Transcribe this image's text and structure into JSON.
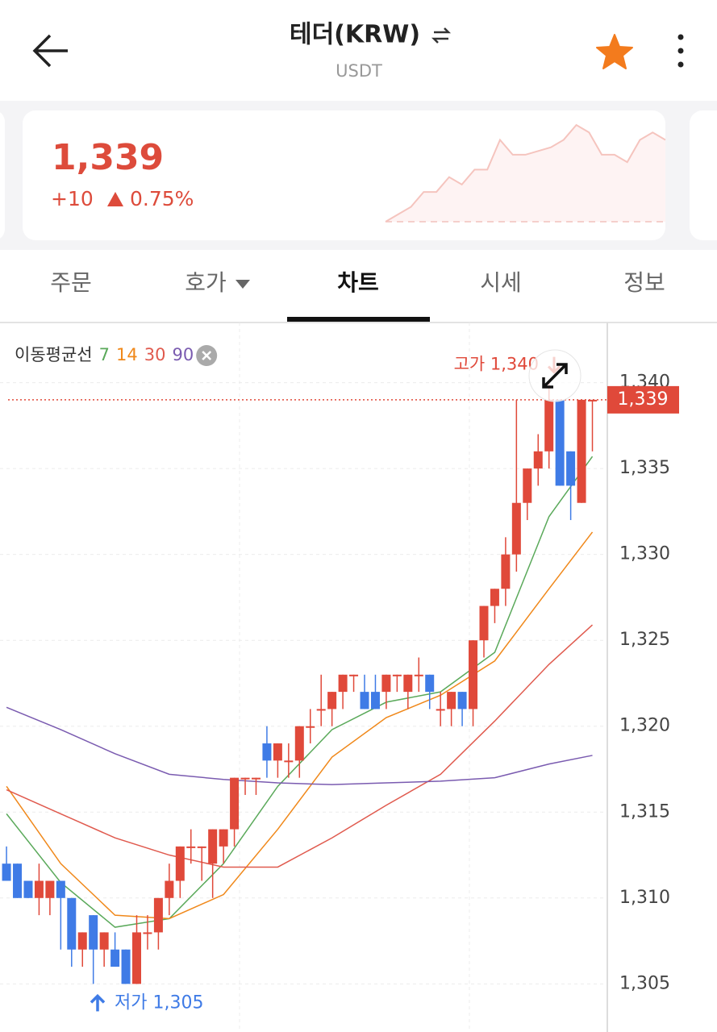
{
  "header": {
    "title": "테더(KRW)",
    "subtitle": "USDT"
  },
  "price_card": {
    "price": "1,339",
    "change": "+10",
    "change_rate": "0.75%",
    "sparkline": {
      "baseline": 1329,
      "values": [
        1329,
        1330,
        1331,
        1333,
        1333,
        1335,
        1334,
        1336,
        1336,
        1340,
        1338,
        1338,
        1338.5,
        1339,
        1340,
        1342,
        1341,
        1338,
        1338,
        1337,
        1340,
        1341,
        1340
      ]
    }
  },
  "tabs": [
    "주문",
    "호가",
    "차트",
    "시세",
    "정보"
  ],
  "active_tab": 2,
  "chart_data": {
    "type": "candlestick",
    "legend_title": "이동평균선",
    "up_color": "#e0493a",
    "down_color": "#3f7be6",
    "xlim": [
      -0.6,
      55.3
    ],
    "ylim": [
      1302.2,
      1343.5
    ],
    "yticks": [
      {
        "value": 1305,
        "label": "1,305"
      },
      {
        "value": 1310,
        "label": "1,310"
      },
      {
        "value": 1315,
        "label": "1,315"
      },
      {
        "value": 1320,
        "label": "1,320"
      },
      {
        "value": 1325,
        "label": "1,325"
      },
      {
        "value": 1330,
        "label": "1,330"
      },
      {
        "value": 1335,
        "label": "1,335"
      },
      {
        "value": 1340,
        "label": "1,340"
      }
    ],
    "grid": true,
    "open": [
      1312,
      1312,
      1311,
      1310,
      1310,
      1311,
      1310,
      1307,
      1309,
      1307,
      1307,
      1307,
      1305,
      1308,
      1308,
      1310,
      1311,
      1313,
      1313,
      1312,
      1313,
      1314,
      1317,
      1317,
      1319,
      1318,
      1318,
      1318,
      1320,
      1321,
      1321,
      1322,
      1323,
      1322,
      1322,
      1322,
      1323,
      1322,
      1323,
      1323,
      1321,
      1321,
      1322,
      1321,
      1325,
      1327,
      1328,
      1330,
      1333,
      1335,
      1336,
      1339,
      1336,
      1333,
      1339
    ],
    "high": [
      1313,
      1312,
      1311,
      1312,
      1311,
      1311,
      1310,
      1308,
      1309,
      1308,
      1308,
      1307,
      1309,
      1309,
      1310,
      1312,
      1313,
      1314,
      1313,
      1314,
      1314,
      1317,
      1317,
      1317,
      1320,
      1319,
      1319,
      1320,
      1321,
      1323,
      1322,
      1323,
      1323,
      1323,
      1323,
      1323,
      1323,
      1323,
      1324,
      1323,
      1322,
      1322,
      1322,
      1325,
      1327,
      1328,
      1331,
      1339,
      1335,
      1337,
      1340,
      1339,
      1336,
      1339,
      1339
    ],
    "low": [
      1311,
      1310,
      1310,
      1309,
      1309,
      1307,
      1306,
      1306,
      1305,
      1306,
      1306,
      1305,
      1305,
      1307,
      1307,
      1309,
      1310,
      1312,
      1311,
      1310,
      1312,
      1313,
      1316,
      1316,
      1317,
      1317,
      1317,
      1317,
      1319,
      1320,
      1320,
      1321,
      1322,
      1321,
      1321,
      1321,
      1322,
      1321,
      1322,
      1321,
      1320,
      1320,
      1320,
      1320,
      1324,
      1326,
      1327,
      1329,
      1332,
      1334,
      1335,
      1334,
      1332,
      1333,
      1336
    ],
    "close": [
      1311,
      1310,
      1310,
      1311,
      1311,
      1310,
      1307,
      1308,
      1307,
      1308,
      1306,
      1305,
      1308,
      1308,
      1310,
      1311,
      1313,
      1313,
      1313,
      1314,
      1314,
      1317,
      1317,
      1317,
      1318,
      1319,
      1318,
      1320,
      1320,
      1321,
      1322,
      1323,
      1323,
      1321,
      1321,
      1323,
      1323,
      1323,
      1323,
      1322,
      1321,
      1322,
      1321,
      1325,
      1327,
      1328,
      1330,
      1333,
      1335,
      1336,
      1339,
      1334,
      1334,
      1339,
      1339
    ],
    "moving_averages": [
      {
        "name": "7",
        "color": "#5aa95a",
        "x": [
          0,
          5,
          10,
          15,
          20,
          25,
          30,
          35,
          40,
          45,
          50,
          54
        ],
        "values": [
          1314.9,
          1310.9,
          1308.3,
          1308.8,
          1312,
          1316.5,
          1319.8,
          1321.4,
          1322,
          1324.3,
          1332.2,
          1335.7
        ]
      },
      {
        "name": "14",
        "color": "#f0881a",
        "x": [
          0,
          5,
          10,
          15,
          20,
          25,
          30,
          35,
          40,
          45,
          50,
          54
        ],
        "values": [
          1316.5,
          1312,
          1309,
          1308.8,
          1310.2,
          1314,
          1318.2,
          1320.5,
          1321.8,
          1323.8,
          1328,
          1331.3
        ]
      },
      {
        "name": "30",
        "color": "#e05a4e",
        "x": [
          0,
          5,
          10,
          15,
          20,
          25,
          30,
          35,
          40,
          45,
          50,
          54
        ],
        "values": [
          1316.3,
          1314.9,
          1313.5,
          1312.5,
          1311.8,
          1311.8,
          1313.5,
          1315.4,
          1317.2,
          1320.3,
          1323.6,
          1325.9
        ]
      },
      {
        "name": "90",
        "color": "#7a5bb0",
        "x": [
          0,
          5,
          10,
          15,
          20,
          25,
          30,
          35,
          40,
          45,
          50,
          54
        ],
        "values": [
          1321.1,
          1319.8,
          1318.4,
          1317.2,
          1316.9,
          1316.7,
          1316.6,
          1316.7,
          1316.8,
          1317,
          1317.8,
          1318.3
        ]
      }
    ],
    "current_price": {
      "value": 1339,
      "label": "1,339"
    },
    "high_label": {
      "text": "고가 1,340",
      "value": 1340
    },
    "low_label": {
      "text": "저가 1,305",
      "value": 1305
    }
  }
}
